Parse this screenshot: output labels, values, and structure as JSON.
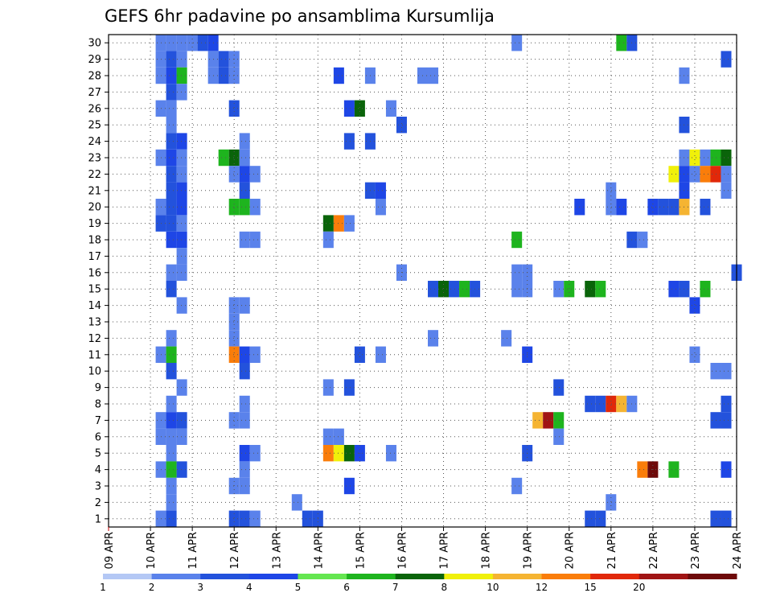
{
  "chart_data": {
    "type": "heatmap",
    "title": "GEFS 6hr padavine po ansamblima Kursumlija",
    "xlabel": "",
    "ylabel": "",
    "x_ticks": [
      "09 APR",
      "10 APR",
      "11 APR",
      "12 APR",
      "13 APR",
      "14 APR",
      "15 APR",
      "16 APR",
      "17 APR",
      "18 APR",
      "19 APR",
      "20 APR",
      "21 APR",
      "22 APR",
      "23 APR",
      "24 APR"
    ],
    "y_ticks": [
      "1",
      "2",
      "3",
      "4",
      "5",
      "6",
      "7",
      "8",
      "9",
      "10",
      "11",
      "12",
      "13",
      "14",
      "15",
      "16",
      "17",
      "18",
      "19",
      "20",
      "21",
      "22",
      "23",
      "24",
      "25",
      "26",
      "27",
      "28",
      "29",
      "30"
    ],
    "x_range": [
      0,
      60
    ],
    "y_range": [
      0.5,
      30.5
    ],
    "x_unit_note": "6-hour steps from 09 APR",
    "grid": true,
    "colorbar": {
      "levels": [
        "1",
        "2",
        "3",
        "4",
        "5",
        "6",
        "7",
        "8",
        "10",
        "12",
        "15",
        "20"
      ],
      "colors": [
        "#b4c8f5",
        "#5a82eb",
        "#2352dc",
        "#1e46e6",
        "#64e650",
        "#1eb41e",
        "#0a640a",
        "#f0f00a",
        "#f5b432",
        "#fa7d0a",
        "#e1280a",
        "#a01414",
        "#6e0a0a"
      ]
    },
    "cells": [
      [
        30,
        5,
        1
      ],
      [
        30,
        6,
        1
      ],
      [
        30,
        7,
        1
      ],
      [
        30,
        8,
        1
      ],
      [
        30,
        9,
        2
      ],
      [
        30,
        10,
        3
      ],
      [
        30,
        39,
        1
      ],
      [
        30,
        49,
        5
      ],
      [
        30,
        50,
        2
      ],
      [
        29,
        5,
        1
      ],
      [
        29,
        6,
        2
      ],
      [
        29,
        7,
        1
      ],
      [
        29,
        10,
        1
      ],
      [
        29,
        11,
        2
      ],
      [
        29,
        12,
        1
      ],
      [
        29,
        59,
        2
      ],
      [
        28,
        5,
        1
      ],
      [
        28,
        6,
        3
      ],
      [
        28,
        7,
        5
      ],
      [
        28,
        10,
        1
      ],
      [
        28,
        11,
        2
      ],
      [
        28,
        12,
        1
      ],
      [
        28,
        22,
        3
      ],
      [
        28,
        25,
        1
      ],
      [
        28,
        30,
        1
      ],
      [
        28,
        31,
        1
      ],
      [
        28,
        55,
        1
      ],
      [
        27,
        6,
        2
      ],
      [
        27,
        7,
        1
      ],
      [
        26,
        5,
        1
      ],
      [
        26,
        6,
        1
      ],
      [
        26,
        12,
        2
      ],
      [
        26,
        23,
        3
      ],
      [
        26,
        24,
        6
      ],
      [
        26,
        27,
        1
      ],
      [
        25,
        6,
        1
      ],
      [
        25,
        28,
        2
      ],
      [
        25,
        55,
        2
      ],
      [
        24,
        6,
        2
      ],
      [
        24,
        7,
        3
      ],
      [
        24,
        13,
        1
      ],
      [
        24,
        23,
        2
      ],
      [
        24,
        25,
        2
      ],
      [
        23,
        5,
        1
      ],
      [
        23,
        6,
        3
      ],
      [
        23,
        7,
        1
      ],
      [
        23,
        11,
        5
      ],
      [
        23,
        12,
        6
      ],
      [
        23,
        13,
        1
      ],
      [
        23,
        55,
        1
      ],
      [
        23,
        56,
        7
      ],
      [
        23,
        57,
        1
      ],
      [
        23,
        58,
        5
      ],
      [
        23,
        59,
        6
      ],
      [
        22,
        6,
        2
      ],
      [
        22,
        7,
        1
      ],
      [
        22,
        12,
        1
      ],
      [
        22,
        13,
        3
      ],
      [
        22,
        14,
        1
      ],
      [
        22,
        54,
        7
      ],
      [
        22,
        55,
        3
      ],
      [
        22,
        56,
        1
      ],
      [
        22,
        57,
        9
      ],
      [
        22,
        58,
        10
      ],
      [
        22,
        59,
        1
      ],
      [
        21,
        6,
        2
      ],
      [
        21,
        7,
        3
      ],
      [
        21,
        13,
        2
      ],
      [
        21,
        25,
        2
      ],
      [
        21,
        26,
        3
      ],
      [
        21,
        48,
        1
      ],
      [
        21,
        55,
        3
      ],
      [
        21,
        59,
        1
      ],
      [
        20,
        5,
        1
      ],
      [
        20,
        6,
        2
      ],
      [
        20,
        7,
        3
      ],
      [
        20,
        12,
        5
      ],
      [
        20,
        13,
        5
      ],
      [
        20,
        14,
        1
      ],
      [
        20,
        26,
        1
      ],
      [
        20,
        45,
        3
      ],
      [
        20,
        48,
        1
      ],
      [
        20,
        49,
        3
      ],
      [
        20,
        52,
        3
      ],
      [
        20,
        53,
        2
      ],
      [
        20,
        54,
        2
      ],
      [
        20,
        55,
        8
      ],
      [
        20,
        57,
        2
      ],
      [
        19,
        5,
        2
      ],
      [
        19,
        6,
        2
      ],
      [
        19,
        7,
        1
      ],
      [
        19,
        21,
        6
      ],
      [
        19,
        22,
        9
      ],
      [
        19,
        23,
        1
      ],
      [
        18,
        6,
        3
      ],
      [
        18,
        7,
        3
      ],
      [
        18,
        13,
        1
      ],
      [
        18,
        14,
        1
      ],
      [
        18,
        21,
        1
      ],
      [
        18,
        39,
        5
      ],
      [
        18,
        50,
        2
      ],
      [
        18,
        51,
        1
      ],
      [
        17,
        7,
        1
      ],
      [
        16,
        6,
        1
      ],
      [
        16,
        7,
        1
      ],
      [
        16,
        28,
        1
      ],
      [
        16,
        39,
        1
      ],
      [
        16,
        40,
        1
      ],
      [
        16,
        60,
        2
      ],
      [
        15,
        6,
        2
      ],
      [
        15,
        31,
        2
      ],
      [
        15,
        32,
        6
      ],
      [
        15,
        33,
        2
      ],
      [
        15,
        34,
        5
      ],
      [
        15,
        35,
        2
      ],
      [
        15,
        39,
        1
      ],
      [
        15,
        40,
        1
      ],
      [
        15,
        43,
        1
      ],
      [
        15,
        44,
        5
      ],
      [
        15,
        46,
        6
      ],
      [
        15,
        47,
        5
      ],
      [
        15,
        54,
        3
      ],
      [
        15,
        55,
        2
      ],
      [
        15,
        57,
        5
      ],
      [
        14,
        7,
        1
      ],
      [
        14,
        12,
        1
      ],
      [
        14,
        13,
        1
      ],
      [
        14,
        56,
        3
      ],
      [
        13,
        12,
        1
      ],
      [
        12,
        6,
        1
      ],
      [
        12,
        12,
        1
      ],
      [
        12,
        31,
        1
      ],
      [
        12,
        38,
        1
      ],
      [
        11,
        5,
        1
      ],
      [
        11,
        6,
        5
      ],
      [
        11,
        12,
        9
      ],
      [
        11,
        13,
        3
      ],
      [
        11,
        14,
        1
      ],
      [
        11,
        24,
        2
      ],
      [
        11,
        26,
        1
      ],
      [
        11,
        40,
        3
      ],
      [
        11,
        56,
        1
      ],
      [
        10,
        6,
        2
      ],
      [
        10,
        13,
        2
      ],
      [
        10,
        58,
        1
      ],
      [
        10,
        59,
        1
      ],
      [
        9,
        7,
        1
      ],
      [
        9,
        21,
        1
      ],
      [
        9,
        23,
        2
      ],
      [
        9,
        43,
        2
      ],
      [
        8,
        6,
        1
      ],
      [
        8,
        13,
        1
      ],
      [
        8,
        46,
        2
      ],
      [
        8,
        47,
        2
      ],
      [
        8,
        48,
        10
      ],
      [
        8,
        49,
        8
      ],
      [
        8,
        50,
        1
      ],
      [
        8,
        59,
        2
      ],
      [
        7,
        5,
        1
      ],
      [
        7,
        6,
        3
      ],
      [
        7,
        7,
        2
      ],
      [
        7,
        12,
        1
      ],
      [
        7,
        13,
        1
      ],
      [
        7,
        41,
        8
      ],
      [
        7,
        42,
        11
      ],
      [
        7,
        43,
        5
      ],
      [
        7,
        58,
        2
      ],
      [
        7,
        59,
        2
      ],
      [
        6,
        5,
        1
      ],
      [
        6,
        6,
        1
      ],
      [
        6,
        7,
        1
      ],
      [
        6,
        21,
        1
      ],
      [
        6,
        22,
        1
      ],
      [
        6,
        43,
        1
      ],
      [
        5,
        6,
        1
      ],
      [
        5,
        13,
        3
      ],
      [
        5,
        14,
        1
      ],
      [
        5,
        21,
        9
      ],
      [
        5,
        22,
        7
      ],
      [
        5,
        23,
        6
      ],
      [
        5,
        24,
        3
      ],
      [
        5,
        27,
        1
      ],
      [
        5,
        40,
        2
      ],
      [
        4,
        5,
        1
      ],
      [
        4,
        6,
        5
      ],
      [
        4,
        7,
        2
      ],
      [
        4,
        13,
        1
      ],
      [
        4,
        51,
        9
      ],
      [
        4,
        52,
        12
      ],
      [
        4,
        54,
        5
      ],
      [
        4,
        59,
        3
      ],
      [
        3,
        6,
        1
      ],
      [
        3,
        12,
        1
      ],
      [
        3,
        13,
        1
      ],
      [
        3,
        23,
        3
      ],
      [
        3,
        39,
        1
      ],
      [
        2,
        6,
        1
      ],
      [
        2,
        18,
        1
      ],
      [
        2,
        48,
        1
      ],
      [
        1,
        5,
        1
      ],
      [
        1,
        6,
        2
      ],
      [
        1,
        12,
        2
      ],
      [
        1,
        13,
        2
      ],
      [
        1,
        14,
        1
      ],
      [
        1,
        19,
        2
      ],
      [
        1,
        20,
        2
      ],
      [
        1,
        46,
        2
      ],
      [
        1,
        47,
        2
      ],
      [
        1,
        58,
        2
      ],
      [
        1,
        59,
        2
      ]
    ]
  }
}
